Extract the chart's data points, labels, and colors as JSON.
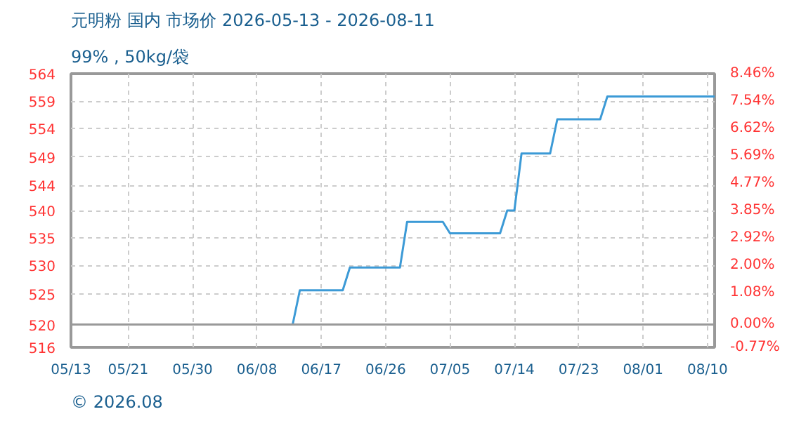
{
  "chart_data": {
    "type": "line",
    "title": "元明粉 国内 市场价 2026-05-13 - 2026-08-11",
    "subtitle": "99% , 50kg/袋",
    "x": [
      "2026-05-13",
      "2026-06-13",
      "2026-06-14",
      "2026-06-20",
      "2026-06-21",
      "2026-06-28",
      "2026-06-29",
      "2026-07-04",
      "2026-07-05",
      "2026-07-12",
      "2026-07-13",
      "2026-07-14",
      "2026-07-15",
      "2026-07-19",
      "2026-07-20",
      "2026-07-26",
      "2026-07-27",
      "2026-08-11"
    ],
    "series": [
      {
        "color": "#3c9ad6",
        "values": [
          520,
          520,
          526,
          526,
          530,
          530,
          538,
          538,
          536,
          536,
          540,
          540,
          550,
          550,
          556,
          556,
          560,
          560
        ]
      }
    ],
    "xlim": [
      "2026-05-13",
      "2026-08-11"
    ],
    "xticks": [
      {
        "value": "2026-05-13",
        "label": "05/13"
      },
      {
        "value": "2026-05-21",
        "label": "05/21"
      },
      {
        "value": "2026-05-30",
        "label": "05/30"
      },
      {
        "value": "2026-06-08",
        "label": "06/08"
      },
      {
        "value": "2026-06-17",
        "label": "06/17"
      },
      {
        "value": "2026-06-26",
        "label": "06/26"
      },
      {
        "value": "2026-07-05",
        "label": "07/05"
      },
      {
        "value": "2026-07-14",
        "label": "07/14"
      },
      {
        "value": "2026-07-23",
        "label": "07/23"
      },
      {
        "value": "2026-08-01",
        "label": "08/01"
      },
      {
        "value": "2026-08-10",
        "label": "08/10"
      }
    ],
    "ylim": [
      516,
      564
    ],
    "yticks": [
      516,
      520,
      {
        "value": 525.4,
        "label": "525"
      },
      {
        "value": 530.4,
        "label": "530"
      },
      {
        "value": 535.2,
        "label": "535"
      },
      540,
      {
        "value": 544.4,
        "label": "544"
      },
      {
        "value": 549.4,
        "label": "549"
      },
      {
        "value": 554.4,
        "label": "554"
      },
      {
        "value": 559.2,
        "label": "559"
      },
      564
    ],
    "y2lim": [
      -0.77,
      8.46
    ],
    "y2ticks": [
      {
        "value": -0.77,
        "label": "-0.77%"
      },
      {
        "value": 0,
        "label": "0.00%"
      },
      {
        "value": 1.08,
        "label": "1.08%"
      },
      {
        "value": 2.0,
        "label": "2.00%"
      },
      {
        "value": 2.92,
        "label": "2.92%"
      },
      {
        "value": 3.85,
        "label": "3.85%"
      },
      {
        "value": 4.77,
        "label": "4.77%"
      },
      {
        "value": 5.69,
        "label": "5.69%"
      },
      {
        "value": 6.62,
        "label": "6.62%"
      },
      {
        "value": 7.54,
        "label": "7.54%"
      },
      {
        "value": 8.46,
        "label": "8.46%"
      }
    ],
    "ref_lines": [
      {
        "axis": "y",
        "value": 520,
        "color": "#999999",
        "line_style": "solid"
      }
    ],
    "grid": true,
    "marker": "none",
    "line_style": "solid",
    "annotations": [
      "© 2026.08"
    ]
  }
}
